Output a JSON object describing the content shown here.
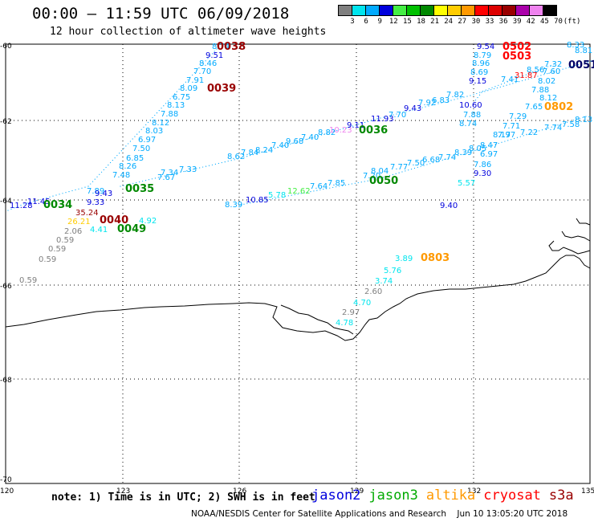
{
  "title": "00:00 – 11:59 UTC 06/09/2018",
  "subtitle": "12 hour collection of altimeter wave heights",
  "legend": {
    "labels": [
      "3",
      "6",
      "9",
      "12",
      "15",
      "18",
      "21",
      "24",
      "27",
      "30",
      "33",
      "36",
      "39",
      "42",
      "45",
      "70",
      "(ft)"
    ],
    "colors": [
      "#7f7f7f",
      "#00e5ee",
      "#00aaff",
      "#0000dd",
      "#44ee44",
      "#00c000",
      "#008800",
      "#ffff00",
      "#ffcc00",
      "#ff9900",
      "#ff0000",
      "#dd0000",
      "#990000",
      "#aa00aa",
      "#ee82ee",
      "#000000"
    ]
  },
  "axes": {
    "lon_labels": [
      "120",
      "123",
      "126",
      "129",
      "132",
      "135"
    ],
    "lat_labels": [
      "-60",
      "-62",
      "-64",
      "-66",
      "-68",
      "-70"
    ]
  },
  "tracks": [
    {
      "id": "0038",
      "color": "#990000"
    },
    {
      "id": "0039",
      "color": "#990000"
    },
    {
      "id": "0036",
      "color": "#008800"
    },
    {
      "id": "0035",
      "color": "#008800"
    },
    {
      "id": "0034",
      "color": "#008800"
    },
    {
      "id": "0049",
      "color": "#008800"
    },
    {
      "id": "0050",
      "color": "#008800"
    },
    {
      "id": "0040",
      "color": "#990000"
    },
    {
      "id": "0502",
      "color": "#ff0000"
    },
    {
      "id": "0503",
      "color": "#ff0000"
    },
    {
      "id": "0802",
      "color": "#ff9900"
    },
    {
      "id": "0803",
      "color": "#ff9900"
    },
    {
      "id": "0051",
      "color": "#000066"
    }
  ],
  "values": [
    {
      "t": "8.74",
      "c": "#00aaff"
    },
    {
      "t": "9.51",
      "c": "#0000dd"
    },
    {
      "t": "8.46",
      "c": "#00aaff"
    },
    {
      "t": "7.70",
      "c": "#00aaff"
    },
    {
      "t": "7.91",
      "c": "#00aaff"
    },
    {
      "t": "8.09",
      "c": "#00aaff"
    },
    {
      "t": "6.75",
      "c": "#00aaff"
    },
    {
      "t": "8.13",
      "c": "#00aaff"
    },
    {
      "t": "7.88",
      "c": "#00aaff"
    },
    {
      "t": "8.12",
      "c": "#00aaff"
    },
    {
      "t": "8.03",
      "c": "#00aaff"
    },
    {
      "t": "6.97",
      "c": "#00aaff"
    },
    {
      "t": "7.50",
      "c": "#00aaff"
    },
    {
      "t": "6.85",
      "c": "#00aaff"
    },
    {
      "t": "8.26",
      "c": "#00aaff"
    },
    {
      "t": "7.48",
      "c": "#00aaff"
    },
    {
      "t": "7.89",
      "c": "#00aaff"
    },
    {
      "t": "9.43",
      "c": "#0000dd"
    },
    {
      "t": "9.33",
      "c": "#0000dd"
    },
    {
      "t": "11.45",
      "c": "#0000dd"
    },
    {
      "t": "11.28",
      "c": "#0000dd"
    },
    {
      "t": "35.24",
      "c": "#990000"
    },
    {
      "t": "26.21",
      "c": "#ffcc00"
    },
    {
      "t": "4.41",
      "c": "#00e5ee"
    },
    {
      "t": "4.92",
      "c": "#00e5ee"
    },
    {
      "t": "2.06",
      "c": "#7f7f7f"
    },
    {
      "t": "0.59",
      "c": "#7f7f7f"
    },
    {
      "t": "0.59",
      "c": "#7f7f7f"
    },
    {
      "t": "0.59",
      "c": "#7f7f7f"
    },
    {
      "t": "0.59",
      "c": "#7f7f7f"
    },
    {
      "t": "7.34",
      "c": "#00aaff"
    },
    {
      "t": "7.33",
      "c": "#00aaff"
    },
    {
      "t": "7.67",
      "c": "#00aaff"
    },
    {
      "t": "8.62",
      "c": "#00aaff"
    },
    {
      "t": "7.84",
      "c": "#00aaff"
    },
    {
      "t": "8.24",
      "c": "#00aaff"
    },
    {
      "t": "7.40",
      "c": "#00aaff"
    },
    {
      "t": "9.68",
      "c": "#00aaff"
    },
    {
      "t": "7.40",
      "c": "#00aaff"
    },
    {
      "t": "8.82",
      "c": "#00aaff"
    },
    {
      "t": "10.23",
      "c": "#ee82ee"
    },
    {
      "t": "9.11",
      "c": "#0000dd"
    },
    {
      "t": "11.93",
      "c": "#0000dd"
    },
    {
      "t": "7.70",
      "c": "#00aaff"
    },
    {
      "t": "9.43",
      "c": "#0000dd"
    },
    {
      "t": "7.92",
      "c": "#00aaff"
    },
    {
      "t": "6.83",
      "c": "#00aaff"
    },
    {
      "t": "7.82",
      "c": "#00aaff"
    },
    {
      "t": "10.60",
      "c": "#0000dd"
    },
    {
      "t": "8.74",
      "c": "#00aaff"
    },
    {
      "t": "7.88",
      "c": "#00aaff"
    },
    {
      "t": "8.39",
      "c": "#00aaff"
    },
    {
      "t": "10.85",
      "c": "#0000dd"
    },
    {
      "t": "5.78",
      "c": "#00e5ee"
    },
    {
      "t": "12.62",
      "c": "#44ee44"
    },
    {
      "t": "7.64",
      "c": "#00aaff"
    },
    {
      "t": "7.85",
      "c": "#00aaff"
    },
    {
      "t": "7.20",
      "c": "#00aaff"
    },
    {
      "t": "8.04",
      "c": "#00aaff"
    },
    {
      "t": "7.77",
      "c": "#00aaff"
    },
    {
      "t": "7.50",
      "c": "#00aaff"
    },
    {
      "t": "6.68",
      "c": "#00aaff"
    },
    {
      "t": "7.74",
      "c": "#00aaff"
    },
    {
      "t": "8.39",
      "c": "#00aaff"
    },
    {
      "t": "8.05",
      "c": "#00aaff"
    },
    {
      "t": "8.47",
      "c": "#00aaff"
    },
    {
      "t": "6.97",
      "c": "#00aaff"
    },
    {
      "t": "7.86",
      "c": "#00aaff"
    },
    {
      "t": "9.30",
      "c": "#0000dd"
    },
    {
      "t": "5.57",
      "c": "#00e5ee"
    },
    {
      "t": "9.40",
      "c": "#0000dd"
    },
    {
      "t": "9.54",
      "c": "#0000dd"
    },
    {
      "t": "8.79",
      "c": "#00aaff"
    },
    {
      "t": "8.96",
      "c": "#00aaff"
    },
    {
      "t": "8.69",
      "c": "#00aaff"
    },
    {
      "t": "9.15",
      "c": "#0000dd"
    },
    {
      "t": "7.41",
      "c": "#00aaff"
    },
    {
      "t": "31.87",
      "c": "#ff0000"
    },
    {
      "t": "8.56",
      "c": "#00aaff"
    },
    {
      "t": "7.32",
      "c": "#00aaff"
    },
    {
      "t": "7.60",
      "c": "#00aaff"
    },
    {
      "t": "8.02",
      "c": "#00aaff"
    },
    {
      "t": "7.88",
      "c": "#00aaff"
    },
    {
      "t": "8.12",
      "c": "#00aaff"
    },
    {
      "t": "7.65",
      "c": "#00aaff"
    },
    {
      "t": "7.29",
      "c": "#00aaff"
    },
    {
      "t": "7.71",
      "c": "#00aaff"
    },
    {
      "t": "8.17",
      "c": "#00aaff"
    },
    {
      "t": "7.97",
      "c": "#00aaff"
    },
    {
      "t": "7.22",
      "c": "#00aaff"
    },
    {
      "t": "7.74",
      "c": "#00aaff"
    },
    {
      "t": "7.58",
      "c": "#00aaff"
    },
    {
      "t": "8.13",
      "c": "#00aaff"
    },
    {
      "t": "8.33",
      "c": "#00aaff"
    },
    {
      "t": "8.81",
      "c": "#00aaff"
    },
    {
      "t": "3.89",
      "c": "#00e5ee"
    },
    {
      "t": "5.76",
      "c": "#00e5ee"
    },
    {
      "t": "3.74",
      "c": "#00e5ee"
    },
    {
      "t": "2.60",
      "c": "#7f7f7f"
    },
    {
      "t": "4.70",
      "c": "#00e5ee"
    },
    {
      "t": "2.97",
      "c": "#7f7f7f"
    },
    {
      "t": "4.78",
      "c": "#00e5ee"
    }
  ],
  "note": "note: 1) Time is in UTC; 2) SWH is in feet",
  "satellites": [
    {
      "name": "jason2",
      "color": "#0000dd"
    },
    {
      "name": "jason3",
      "color": "#00aa00"
    },
    {
      "name": "altika",
      "color": "#ff9900"
    },
    {
      "name": "cryosat",
      "color": "#ff0000"
    },
    {
      "name": "s3a",
      "color": "#990000"
    }
  ],
  "credit": "NOAA/NESDIS Center for Satellite Applications and Research",
  "timestamp": "Jun 10 13:05:20 UTC 2018"
}
